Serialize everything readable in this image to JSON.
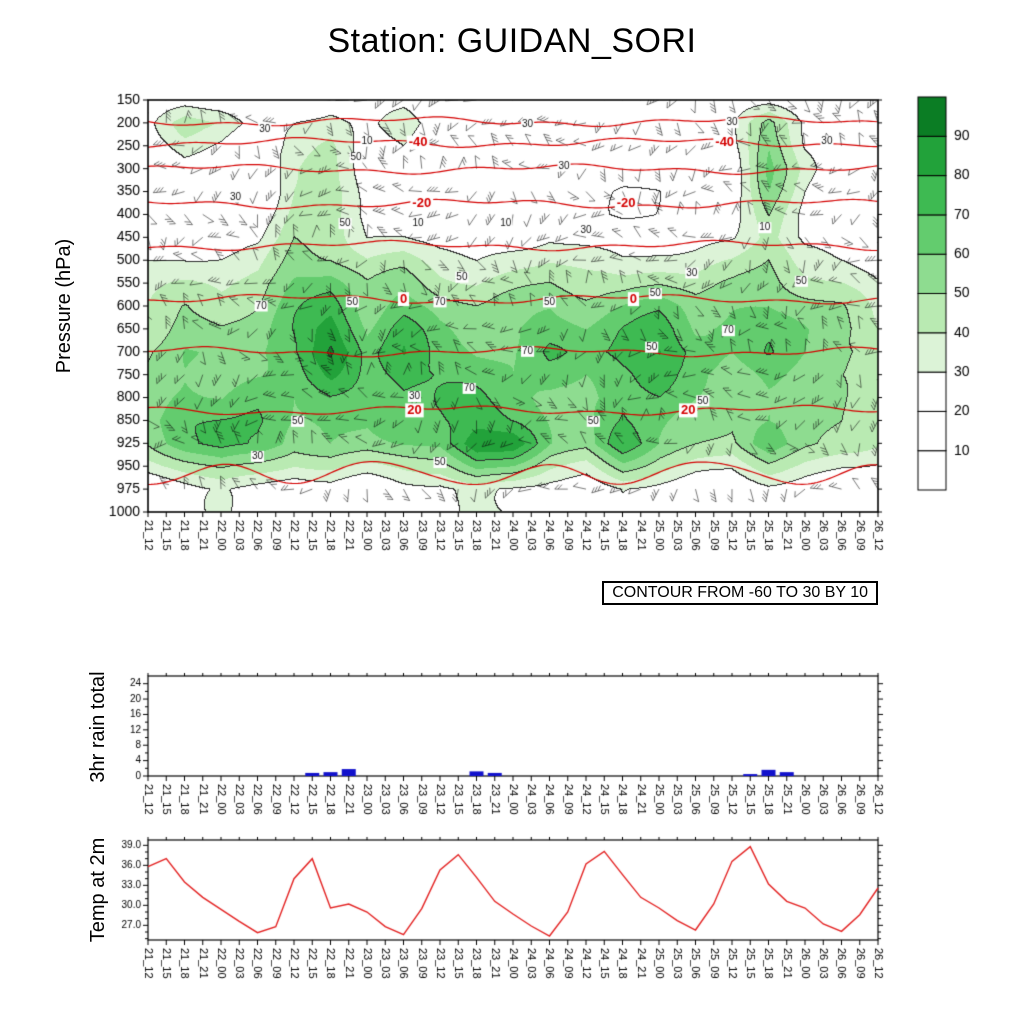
{
  "title": "Station: GUIDAN_SORI",
  "chart_data": {
    "time_labels": [
      "21_12",
      "21_15",
      "21_18",
      "21_21",
      "22_00",
      "22_03",
      "22_06",
      "22_09",
      "22_12",
      "22_15",
      "22_18",
      "22_21",
      "23_00",
      "23_03",
      "23_06",
      "23_09",
      "23_12",
      "23_15",
      "23_18",
      "23_21",
      "24_00",
      "24_03",
      "24_06",
      "24_09",
      "24_12",
      "24_15",
      "24_18",
      "24_21",
      "25_00",
      "25_03",
      "25_06",
      "25_09",
      "25_12",
      "25_15",
      "25_18",
      "25_21",
      "26_00",
      "26_03",
      "26_06",
      "26_09",
      "26_12"
    ],
    "cross_section": {
      "type": "contour_heatmap",
      "ylabel": "Pressure (hPa)",
      "caption": "CONTOUR FROM -60 TO 30 BY 10",
      "pressure_ticks": [
        150,
        200,
        250,
        300,
        350,
        400,
        450,
        500,
        550,
        600,
        650,
        700,
        750,
        800,
        850,
        925,
        950,
        975,
        1000
      ],
      "colorbar_labels": [
        10,
        20,
        30,
        40,
        50,
        60,
        70,
        80,
        90
      ],
      "colorbar_colors_low_to_high": [
        "#ffffff",
        "#ffffff",
        "#ffffff",
        "#dcf3d7",
        "#b9eab2",
        "#8edc90",
        "#63cc6e",
        "#3eba52",
        "#22a23a",
        "#0b7d24"
      ],
      "black_contour_levels": [
        10,
        30,
        50,
        70,
        90
      ],
      "red_contour": {
        "from": -60,
        "to": 30,
        "by": 10,
        "labeled_levels": [
          -40,
          -20,
          0,
          20
        ],
        "levels": [
          {
            "level": -50,
            "pressure": 197
          },
          {
            "level": -40,
            "pressure": 243,
            "label_x": [
              0.37,
              0.79
            ]
          },
          {
            "level": -30,
            "pressure": 301
          },
          {
            "level": -20,
            "pressure": 377,
            "label_x": [
              0.375,
              0.655
            ]
          },
          {
            "level": -10,
            "pressure": 468
          },
          {
            "level": 0,
            "pressure": 585,
            "label_x": [
              0.35,
              0.665
            ]
          },
          {
            "level": 10,
            "pressure": 700
          },
          {
            "level": 20,
            "pressure": 828,
            "label_x": [
              0.365,
              0.74
            ]
          },
          {
            "level": 30,
            "pressure": 958
          }
        ]
      },
      "grid": {
        "time_stride": 2,
        "pressures": [
          150,
          200,
          250,
          300,
          350,
          400,
          450,
          500,
          550,
          600,
          650,
          700,
          750,
          800,
          850,
          925,
          975
        ],
        "values": [
          [
            20,
            25,
            20,
            15,
            20,
            25,
            20,
            25,
            20,
            15,
            20,
            20,
            15,
            20,
            20,
            15,
            20,
            25,
            20,
            15,
            20
          ],
          [
            25,
            45,
            40,
            25,
            30,
            35,
            25,
            35,
            25,
            20,
            25,
            25,
            20,
            25,
            20,
            20,
            25,
            55,
            30,
            20,
            25
          ],
          [
            20,
            35,
            30,
            20,
            32,
            42,
            25,
            30,
            20,
            20,
            20,
            25,
            20,
            20,
            20,
            15,
            25,
            60,
            30,
            20,
            20
          ],
          [
            15,
            25,
            20,
            15,
            38,
            45,
            25,
            25,
            20,
            15,
            15,
            20,
            15,
            15,
            15,
            15,
            20,
            62,
            35,
            20,
            15
          ],
          [
            15,
            20,
            15,
            15,
            42,
            45,
            25,
            20,
            15,
            15,
            15,
            15,
            15,
            10,
            10,
            15,
            20,
            58,
            30,
            15,
            10
          ],
          [
            15,
            15,
            15,
            20,
            46,
            42,
            25,
            20,
            15,
            10,
            15,
            20,
            15,
            10,
            10,
            15,
            25,
            52,
            25,
            15,
            10
          ],
          [
            20,
            20,
            20,
            25,
            50,
            46,
            30,
            32,
            25,
            20,
            25,
            30,
            25,
            20,
            20,
            25,
            30,
            46,
            25,
            20,
            15
          ],
          [
            30,
            30,
            30,
            35,
            56,
            52,
            40,
            45,
            35,
            30,
            35,
            40,
            35,
            30,
            35,
            35,
            40,
            50,
            35,
            30,
            25
          ],
          [
            35,
            40,
            40,
            45,
            62,
            66,
            50,
            56,
            45,
            40,
            45,
            50,
            45,
            45,
            50,
            45,
            50,
            55,
            45,
            40,
            30
          ],
          [
            40,
            50,
            45,
            50,
            66,
            76,
            55,
            66,
            55,
            50,
            55,
            60,
            55,
            60,
            66,
            55,
            60,
            60,
            55,
            50,
            35
          ],
          [
            45,
            55,
            50,
            55,
            70,
            86,
            60,
            76,
            60,
            55,
            60,
            65,
            60,
            70,
            76,
            60,
            65,
            65,
            60,
            55,
            40
          ],
          [
            50,
            60,
            55,
            60,
            70,
            91,
            65,
            81,
            65,
            60,
            60,
            70,
            65,
            76,
            81,
            65,
            60,
            70,
            60,
            55,
            45
          ],
          [
            50,
            60,
            55,
            60,
            65,
            81,
            65,
            76,
            70,
            65,
            60,
            65,
            60,
            70,
            76,
            60,
            55,
            65,
            55,
            50,
            45
          ],
          [
            55,
            65,
            60,
            65,
            60,
            70,
            65,
            70,
            70,
            70,
            65,
            60,
            55,
            65,
            70,
            60,
            55,
            60,
            55,
            50,
            45
          ],
          [
            55,
            70,
            70,
            70,
            60,
            65,
            60,
            65,
            70,
            76,
            70,
            60,
            55,
            70,
            65,
            55,
            50,
            60,
            55,
            50,
            45
          ],
          [
            50,
            65,
            76,
            70,
            55,
            60,
            55,
            60,
            65,
            91,
            86,
            60,
            55,
            81,
            60,
            50,
            45,
            70,
            55,
            45,
            40
          ],
          [
            20,
            25,
            30,
            25,
            20,
            25,
            20,
            25,
            25,
            35,
            30,
            25,
            20,
            30,
            25,
            20,
            20,
            25,
            20,
            15,
            15
          ]
        ]
      },
      "contour_labels": [
        {
          "text": "30",
          "fx": 0.16,
          "fy": 0.07
        },
        {
          "text": "10",
          "fx": 0.3,
          "fy": 0.1
        },
        {
          "text": "30",
          "fx": 0.52,
          "fy": 0.06
        },
        {
          "text": "30",
          "fx": 0.8,
          "fy": 0.055
        },
        {
          "text": "30",
          "fx": 0.93,
          "fy": 0.1
        },
        {
          "text": "50",
          "fx": 0.285,
          "fy": 0.14
        },
        {
          "text": "30",
          "fx": 0.57,
          "fy": 0.16
        },
        {
          "text": "30",
          "fx": 0.12,
          "fy": 0.235
        },
        {
          "text": "50",
          "fx": 0.27,
          "fy": 0.3
        },
        {
          "text": "10",
          "fx": 0.49,
          "fy": 0.3
        },
        {
          "text": "10",
          "fx": 0.845,
          "fy": 0.31
        },
        {
          "text": "30",
          "fx": 0.6,
          "fy": 0.315
        },
        {
          "text": "10",
          "fx": 0.37,
          "fy": 0.3
        },
        {
          "text": "50",
          "fx": 0.43,
          "fy": 0.43
        },
        {
          "text": "30",
          "fx": 0.745,
          "fy": 0.42
        },
        {
          "text": "50",
          "fx": 0.695,
          "fy": 0.47
        },
        {
          "text": "70",
          "fx": 0.155,
          "fy": 0.5
        },
        {
          "text": "50",
          "fx": 0.28,
          "fy": 0.49
        },
        {
          "text": "70",
          "fx": 0.4,
          "fy": 0.49
        },
        {
          "text": "50",
          "fx": 0.55,
          "fy": 0.49
        },
        {
          "text": "70",
          "fx": 0.795,
          "fy": 0.56
        },
        {
          "text": "50",
          "fx": 0.895,
          "fy": 0.44
        },
        {
          "text": "70",
          "fx": 0.52,
          "fy": 0.61
        },
        {
          "text": "50",
          "fx": 0.69,
          "fy": 0.6
        },
        {
          "text": "70",
          "fx": 0.44,
          "fy": 0.7
        },
        {
          "text": "50",
          "fx": 0.76,
          "fy": 0.73
        },
        {
          "text": "30",
          "fx": 0.365,
          "fy": 0.72
        },
        {
          "text": "50",
          "fx": 0.205,
          "fy": 0.78
        },
        {
          "text": "50",
          "fx": 0.61,
          "fy": 0.78
        },
        {
          "text": "50",
          "fx": 0.4,
          "fy": 0.88
        },
        {
          "text": "30",
          "fx": 0.15,
          "fy": 0.865
        }
      ],
      "wind_barbs": {
        "rows": 17,
        "cols": 41
      }
    },
    "rain": {
      "type": "bar",
      "ylabel": "3hr rain total",
      "y_ticks": [
        0,
        4,
        8,
        12,
        16,
        20,
        24
      ],
      "ymax": 26,
      "bar_color": "#1111cc",
      "values": [
        0,
        0,
        0,
        0,
        0,
        0,
        0,
        0,
        0,
        0.8,
        1.0,
        1.8,
        0,
        0,
        0,
        0,
        0,
        0,
        1.2,
        0.8,
        0,
        0,
        0,
        0,
        0,
        0,
        0,
        0,
        0,
        0,
        0,
        0,
        0,
        0.5,
        1.6,
        1.0,
        0,
        0,
        0,
        0,
        0
      ]
    },
    "temp2m": {
      "type": "line",
      "ylabel": "Temp at 2m",
      "y_ticks": [
        27,
        30,
        33,
        36,
        39
      ],
      "ylim": [
        24.8,
        39.8
      ],
      "line_color": "#e32222",
      "values": [
        35.8,
        37.0,
        33.5,
        31.2,
        29.4,
        27.6,
        25.9,
        26.8,
        34.0,
        37.0,
        29.6,
        30.2,
        29.0,
        26.8,
        25.6,
        29.5,
        35.3,
        37.6,
        34.2,
        30.6,
        28.7,
        26.9,
        25.4,
        29.0,
        36.2,
        38.1,
        34.6,
        31.2,
        29.6,
        27.7,
        26.3,
        30.2,
        36.6,
        38.8,
        33.2,
        30.6,
        29.6,
        27.2,
        26.1,
        28.6,
        32.6
      ]
    }
  }
}
